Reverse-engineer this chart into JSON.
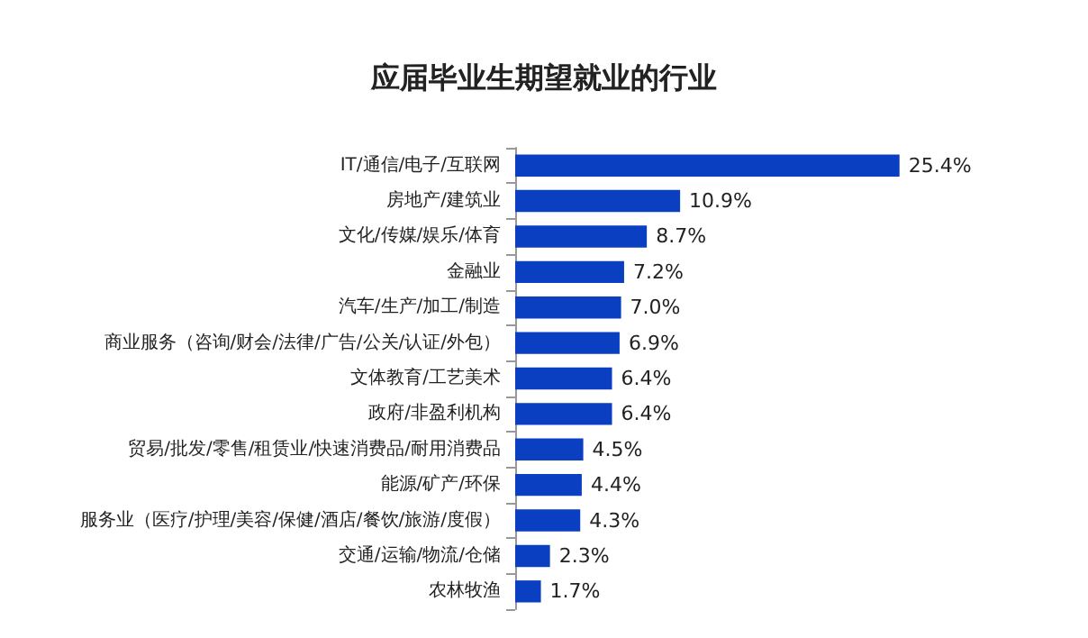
{
  "chart_data": {
    "type": "bar",
    "orientation": "horizontal",
    "title": "应届毕业生期望就业的行业",
    "categories": [
      "IT/通信/电子/互联网",
      "房地产/建筑业",
      "文化/传媒/娱乐/体育",
      "金融业",
      "汽车/生产/加工/制造",
      "商业服务（咨询/财会/法律/广告/公关/认证/外包）",
      "文体教育/工艺美术",
      "政府/非盈利机构",
      "贸易/批发/零售/租赁业/快速消费品/耐用消费品",
      "能源/矿产/环保",
      "服务业（医疗/护理/美容/保健/酒店/餐饮/旅游/度假）",
      "交通/运输/物流/仓储",
      "农林牧渔"
    ],
    "values": [
      25.4,
      10.9,
      8.7,
      7.2,
      7.0,
      6.9,
      6.4,
      6.4,
      4.5,
      4.4,
      4.3,
      2.3,
      1.7
    ],
    "value_labels": [
      "25.4%",
      "10.9%",
      "8.7%",
      "7.2%",
      "7.0%",
      "6.9%",
      "6.4%",
      "6.4%",
      "4.5%",
      "4.4%",
      "4.3%",
      "2.3%",
      "1.7%"
    ],
    "color": "#0a3fc2"
  }
}
